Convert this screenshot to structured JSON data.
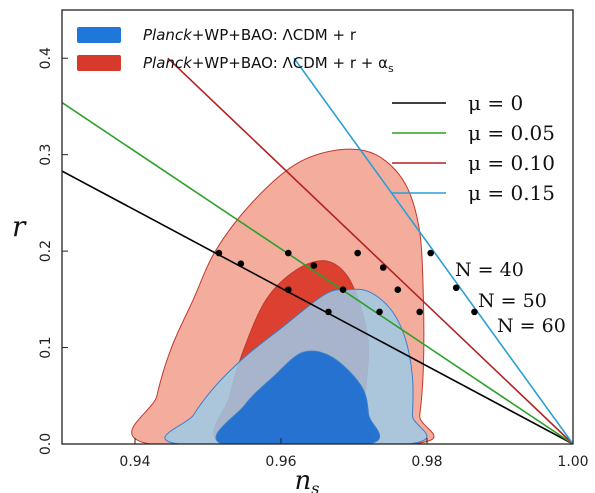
{
  "chart_data": {
    "type": "contour-line",
    "xlabel": "n",
    "xlabel_sub": "s",
    "ylabel": "r",
    "xlim": [
      0.93,
      1.0
    ],
    "ylim": [
      0.0,
      0.45
    ],
    "xticks": [
      {
        "value": 0.94,
        "label": "0.94"
      },
      {
        "value": 0.96,
        "label": "0.96"
      },
      {
        "value": 0.98,
        "label": "0.98"
      },
      {
        "value": 1.0,
        "label": "1.00"
      }
    ],
    "yticks": [
      {
        "value": 0.0,
        "label": "0.0"
      },
      {
        "value": 0.1,
        "label": "0.1"
      },
      {
        "value": 0.2,
        "label": "0.2"
      },
      {
        "value": 0.3,
        "label": "0.3"
      },
      {
        "value": 0.4,
        "label": "0.4"
      }
    ],
    "legend_regions": [
      {
        "id": "lcdm",
        "italic": "Planck",
        "rest": "+WP+BAO: ΛCDM + r",
        "color": "#1f77d9"
      },
      {
        "id": "lcdm_alpha",
        "italic": "Planck",
        "rest": "+WP+BAO: ΛCDM + r + α",
        "sub": "s",
        "color": "#d63a2a"
      }
    ],
    "legend_lines": [
      {
        "label": "μ = 0",
        "color": "#000000"
      },
      {
        "label": "μ = 0.05",
        "color": "#2ca02c"
      },
      {
        "label": "μ = 0.10",
        "color": "#b22222"
      },
      {
        "label": "μ = 0.15",
        "color": "#2a9fd6"
      }
    ],
    "lines": [
      {
        "color": "#000000",
        "points": [
          [
            0.93,
            0.283
          ],
          [
            1.0,
            0.0
          ]
        ]
      },
      {
        "color": "#2ca02c",
        "points": [
          [
            0.93,
            0.354
          ],
          [
            1.0,
            0.0
          ]
        ]
      },
      {
        "color": "#b22222",
        "points": [
          [
            0.9445,
            0.4
          ],
          [
            1.0,
            0.0
          ]
        ]
      },
      {
        "color": "#2a9fd6",
        "points": [
          [
            0.9618,
            0.4
          ],
          [
            1.0,
            0.0
          ]
        ]
      }
    ],
    "regions": [
      {
        "color": "#f3a898",
        "points": [
          [
            0.942,
            0.0
          ],
          [
            0.943,
            0.05
          ],
          [
            0.945,
            0.1
          ],
          [
            0.948,
            0.15
          ],
          [
            0.951,
            0.2
          ],
          [
            0.956,
            0.25
          ],
          [
            0.962,
            0.29
          ],
          [
            0.968,
            0.305
          ],
          [
            0.973,
            0.3
          ],
          [
            0.977,
            0.27
          ],
          [
            0.979,
            0.22
          ],
          [
            0.9795,
            0.15
          ],
          [
            0.9795,
            0.08
          ],
          [
            0.979,
            0.03
          ],
          [
            0.978,
            0.0
          ]
        ]
      },
      {
        "color": "#d93a2a",
        "points": [
          [
            0.952,
            0.0
          ],
          [
            0.953,
            0.05
          ],
          [
            0.955,
            0.1
          ],
          [
            0.958,
            0.15
          ],
          [
            0.962,
            0.18
          ],
          [
            0.966,
            0.19
          ],
          [
            0.969,
            0.175
          ],
          [
            0.971,
            0.14
          ],
          [
            0.972,
            0.1
          ],
          [
            0.9715,
            0.05
          ],
          [
            0.971,
            0.0
          ]
        ]
      },
      {
        "color": "#9ec9e6",
        "points": [
          [
            0.946,
            0.0
          ],
          [
            0.948,
            0.03
          ],
          [
            0.951,
            0.06
          ],
          [
            0.955,
            0.09
          ],
          [
            0.96,
            0.12
          ],
          [
            0.966,
            0.155
          ],
          [
            0.969,
            0.16
          ],
          [
            0.972,
            0.158
          ],
          [
            0.975,
            0.14
          ],
          [
            0.977,
            0.11
          ],
          [
            0.978,
            0.07
          ],
          [
            0.978,
            0.03
          ],
          [
            0.9775,
            0.0
          ]
        ]
      },
      {
        "color": "#1f6fd1",
        "points": [
          [
            0.952,
            0.0
          ],
          [
            0.955,
            0.04
          ],
          [
            0.959,
            0.07
          ],
          [
            0.963,
            0.095
          ],
          [
            0.967,
            0.09
          ],
          [
            0.971,
            0.06
          ],
          [
            0.972,
            0.03
          ],
          [
            0.972,
            0.0
          ]
        ]
      }
    ],
    "points": [
      {
        "x": 0.9515,
        "y": 0.198
      },
      {
        "x": 0.9545,
        "y": 0.187
      },
      {
        "x": 0.961,
        "y": 0.198
      },
      {
        "x": 0.9645,
        "y": 0.185
      },
      {
        "x": 0.9705,
        "y": 0.198
      },
      {
        "x": 0.974,
        "y": 0.183
      },
      {
        "x": 0.9805,
        "y": 0.198
      },
      {
        "x": 0.984,
        "y": 0.162
      },
      {
        "x": 0.9865,
        "y": 0.137
      },
      {
        "x": 0.961,
        "y": 0.16
      },
      {
        "x": 0.9685,
        "y": 0.16
      },
      {
        "x": 0.976,
        "y": 0.16
      },
      {
        "x": 0.9665,
        "y": 0.137
      },
      {
        "x": 0.9735,
        "y": 0.137
      },
      {
        "x": 0.979,
        "y": 0.137
      }
    ],
    "annotations": [
      {
        "text": "N = 40"
      },
      {
        "text": "N = 50"
      },
      {
        "text": "N = 60"
      }
    ]
  }
}
